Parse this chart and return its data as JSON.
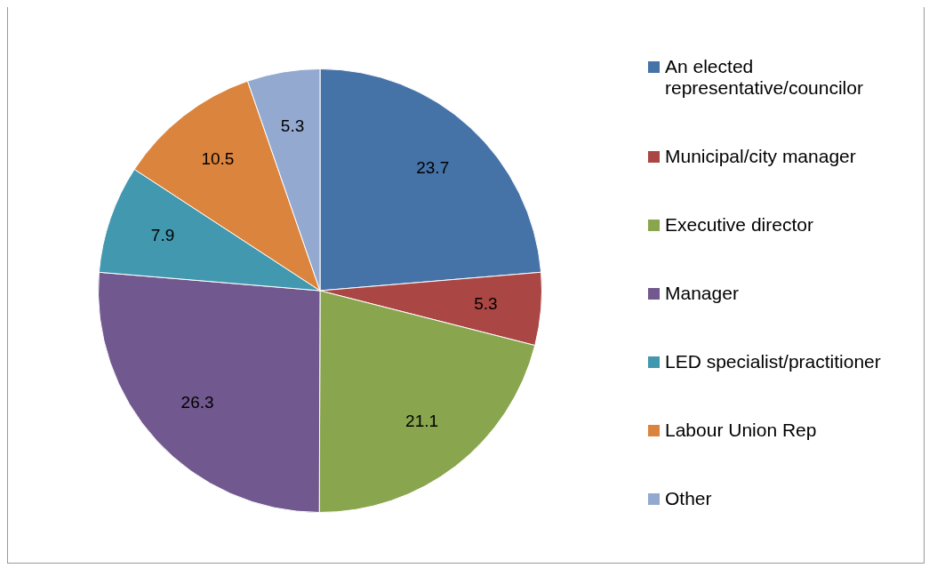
{
  "chart_data": {
    "type": "pie",
    "categories": [
      "An elected representative/councilor",
      "Municipal/city manager",
      "Executive director",
      "Manager",
      "LED specialist/practitioner",
      "Labour Union Rep",
      "Other"
    ],
    "values": [
      23.7,
      5.3,
      21.1,
      26.3,
      7.9,
      10.5,
      5.3
    ],
    "colors": [
      "#4572a7",
      "#aa4643",
      "#89a54e",
      "#71588f",
      "#4198af",
      "#db843d",
      "#93a9cf"
    ],
    "data_labels": true,
    "legend": "right"
  }
}
